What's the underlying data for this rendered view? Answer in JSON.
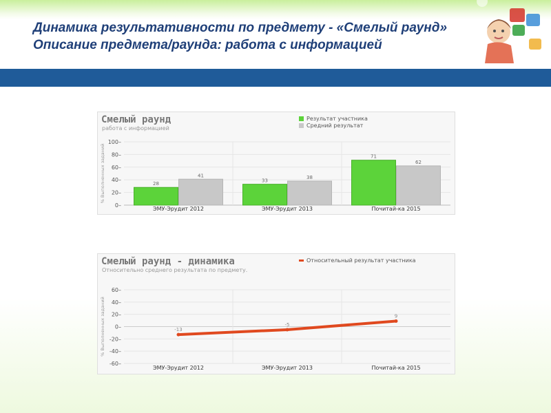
{
  "slide": {
    "title_line1": "Динамика результативности по предмету - «Смелый раунд»",
    "title_line2": "Описание предмета/раунда: работа с информацией",
    "accent_color": "#1f5b99"
  },
  "chart_data": [
    {
      "type": "bar",
      "title": "Смелый раунд",
      "subtitle": "работа с информацией",
      "ylabel": "% Выполненных заданий",
      "ylim": [
        0,
        100
      ],
      "yticks": [
        0,
        20,
        40,
        60,
        80,
        100
      ],
      "legend_position": "top-right",
      "categories": [
        "ЭМУ-Эрудит 2012",
        "ЭМУ-Эрудит 2013",
        "Почитай-ка 2015"
      ],
      "series": [
        {
          "name": "Результат участника",
          "color": "#5cd33a",
          "values": [
            28,
            33,
            71
          ]
        },
        {
          "name": "Средний результат",
          "color": "#c8c8c8",
          "values": [
            41,
            38,
            62
          ]
        }
      ]
    },
    {
      "type": "line",
      "title": "Смелый раунд - динамика",
      "subtitle": "Относительно среднего результата по предмету.",
      "ylabel": "% Выполненных заданий",
      "ylim": [
        -60,
        60
      ],
      "yticks": [
        -60,
        -40,
        -20,
        0,
        20,
        40,
        60
      ],
      "legend_position": "top-right",
      "categories": [
        "ЭМУ-Эрудит 2012",
        "ЭМУ-Эрудит 2013",
        "Почитай-ка 2015"
      ],
      "series": [
        {
          "name": "Относительный результат участника",
          "color": "#e0491f",
          "values": [
            -13,
            -5,
            9
          ]
        }
      ]
    }
  ]
}
